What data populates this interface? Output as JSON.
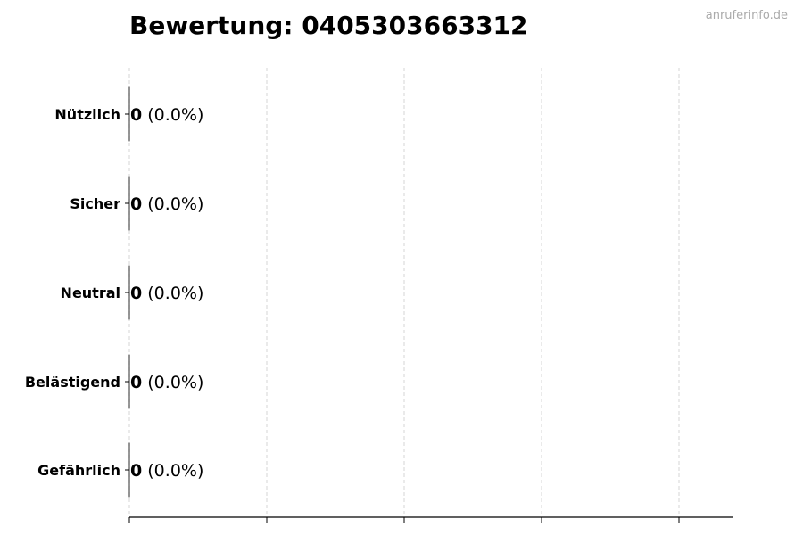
{
  "chart_data": {
    "type": "bar",
    "orientation": "horizontal",
    "title": "Bewertung: 0405303663312",
    "categories": [
      "Nützlich",
      "Sicher",
      "Neutral",
      "Belästigend",
      "Gefährlich"
    ],
    "values": [
      0,
      0,
      0,
      0,
      0
    ],
    "percent_labels": [
      "(0.0%)",
      "(0.0%)",
      "(0.0%)",
      "(0.0%)",
      "(0.0%)"
    ],
    "xlabel": "",
    "ylabel": "",
    "grid": "x dashed",
    "legend": "none",
    "colors": {
      "bar_edge": "#000000",
      "grid": "#cccccc",
      "watermark": "#aaaaaa"
    }
  },
  "watermark": "anruferinfo.de"
}
